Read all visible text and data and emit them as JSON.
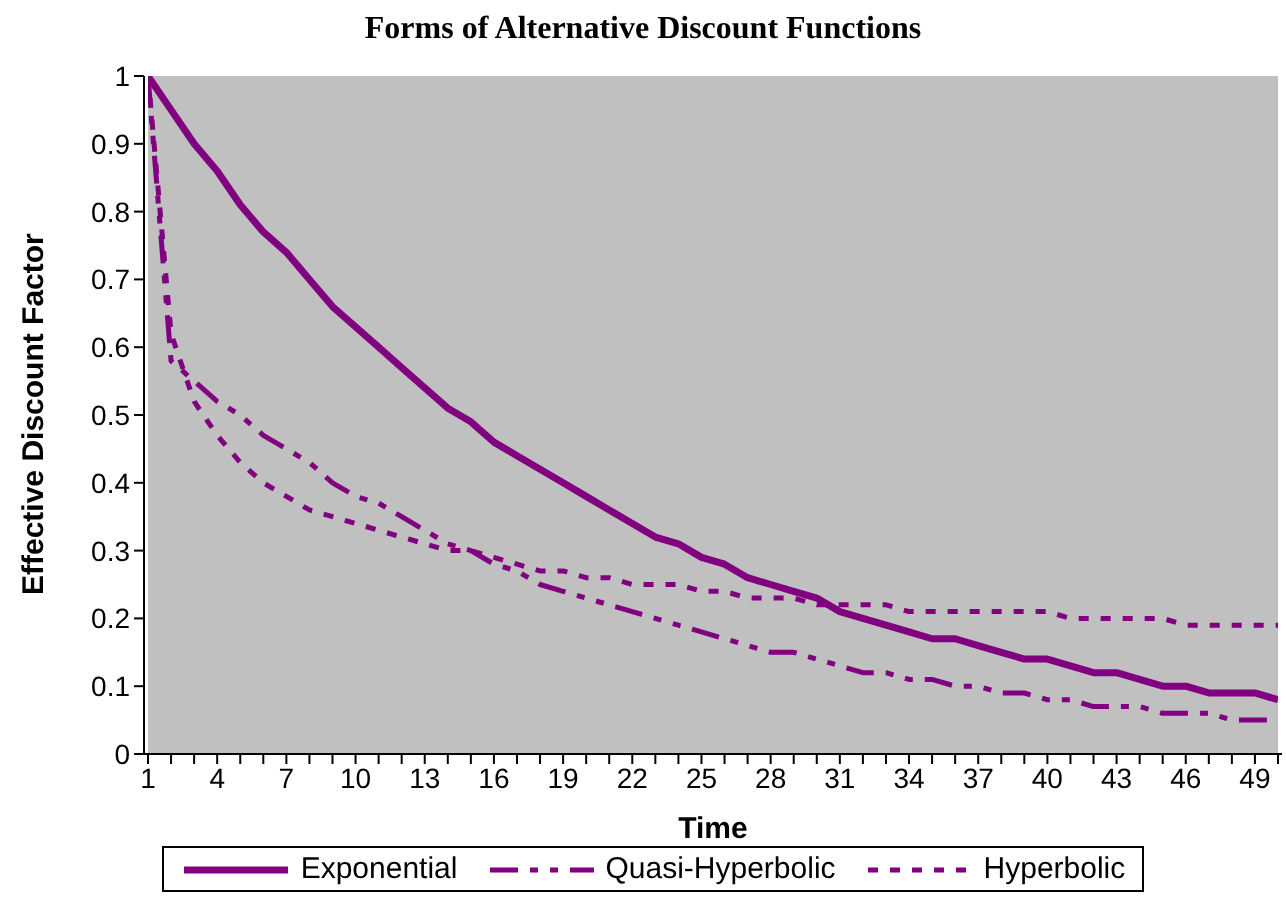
{
  "chart_data": {
    "type": "line",
    "title": "Forms of Alternative Discount Functions",
    "xlabel": "Time",
    "ylabel": "Effective Discount Factor",
    "categories": [
      "1",
      null,
      null,
      "4",
      null,
      null,
      "7",
      null,
      null,
      "10",
      null,
      null,
      "13",
      null,
      null,
      "16",
      null,
      null,
      "19",
      null,
      null,
      "22",
      null,
      null,
      "25",
      null,
      null,
      "28",
      null,
      null,
      "31",
      null,
      null,
      "34",
      null,
      null,
      "37",
      null,
      null,
      "40",
      null,
      null,
      "43",
      null,
      null,
      "46",
      null,
      null,
      "49",
      null
    ],
    "ylim": [
      0,
      1
    ],
    "yticks": [
      0,
      0.1,
      0.2,
      0.3,
      0.4,
      0.5,
      0.6,
      0.7,
      0.8,
      0.9,
      1
    ],
    "grid": false,
    "legend": "bottom",
    "marker": "none",
    "series": [
      {
        "name": "Exponential",
        "color": "#800080",
        "line_style": "solid",
        "values": [
          1,
          0.95,
          0.9,
          0.86,
          0.81,
          0.77,
          0.74,
          0.7,
          0.66,
          0.63,
          0.6,
          0.57,
          0.54,
          0.51,
          0.49,
          0.46,
          0.44,
          0.42,
          0.4,
          0.38,
          0.36,
          0.34,
          0.32,
          0.31,
          0.29,
          0.28,
          0.26,
          0.25,
          0.24,
          0.23,
          0.21,
          0.2,
          0.19,
          0.18,
          0.17,
          0.17,
          0.16,
          0.15,
          0.14,
          0.14,
          0.13,
          0.12,
          0.12,
          0.11,
          0.1,
          0.1,
          0.09,
          0.09,
          0.09,
          0.08
        ]
      },
      {
        "name": "Quasi-Hyperbolic",
        "color": "#800080",
        "line_style": "dashed",
        "values": [
          1,
          0.58,
          0.55,
          0.52,
          0.5,
          0.47,
          0.45,
          0.43,
          0.4,
          0.38,
          0.37,
          0.35,
          0.33,
          0.31,
          0.3,
          0.28,
          0.27,
          0.25,
          0.24,
          0.23,
          0.22,
          0.21,
          0.2,
          0.19,
          0.18,
          0.17,
          0.16,
          0.15,
          0.15,
          0.14,
          0.13,
          0.12,
          0.12,
          0.11,
          0.11,
          0.1,
          0.1,
          0.09,
          0.09,
          0.08,
          0.08,
          0.07,
          0.07,
          0.07,
          0.06,
          0.06,
          0.06,
          0.05,
          0.05,
          0.05
        ]
      },
      {
        "name": "Hyperbolic",
        "color": "#800080",
        "line_style": "dotted",
        "values": [
          1,
          0.62,
          0.52,
          0.47,
          0.43,
          0.4,
          0.38,
          0.36,
          0.35,
          0.34,
          0.33,
          0.32,
          0.31,
          0.3,
          0.3,
          0.29,
          0.28,
          0.27,
          0.27,
          0.26,
          0.26,
          0.25,
          0.25,
          0.25,
          0.24,
          0.24,
          0.23,
          0.23,
          0.23,
          0.22,
          0.22,
          0.22,
          0.22,
          0.21,
          0.21,
          0.21,
          0.21,
          0.21,
          0.21,
          0.21,
          0.2,
          0.2,
          0.2,
          0.2,
          0.2,
          0.19,
          0.19,
          0.19,
          0.19,
          0.19
        ]
      }
    ]
  }
}
